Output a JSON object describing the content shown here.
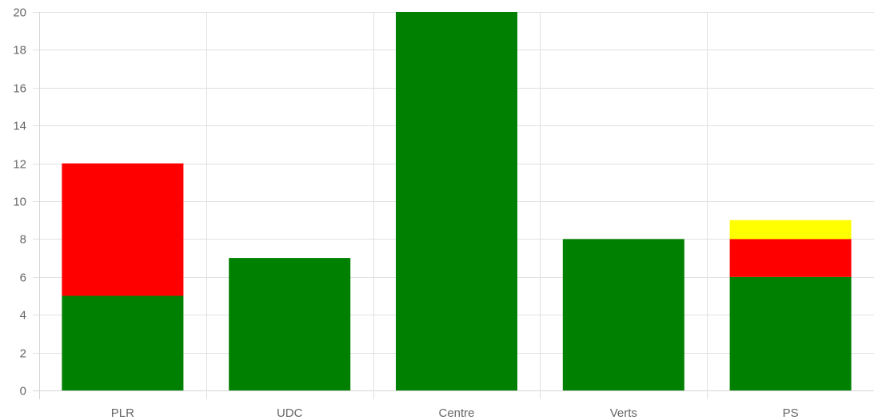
{
  "chart_data": {
    "type": "bar",
    "stacked": true,
    "categories": [
      "PLR",
      "UDC",
      "Centre",
      "Verts",
      "PS"
    ],
    "series": [
      {
        "color": "#008000",
        "values": [
          5,
          7,
          20,
          8,
          6
        ]
      },
      {
        "color": "#ff0000",
        "values": [
          7,
          0,
          0,
          0,
          2
        ]
      },
      {
        "color": "#ffff00",
        "values": [
          0,
          0,
          0,
          0,
          1
        ]
      }
    ],
    "ylim": [
      0,
      20
    ],
    "yticks": [
      "0",
      "2",
      "4",
      "6",
      "8",
      "10",
      "12",
      "14",
      "16",
      "18",
      "20"
    ],
    "grid": true,
    "legend": "none"
  }
}
